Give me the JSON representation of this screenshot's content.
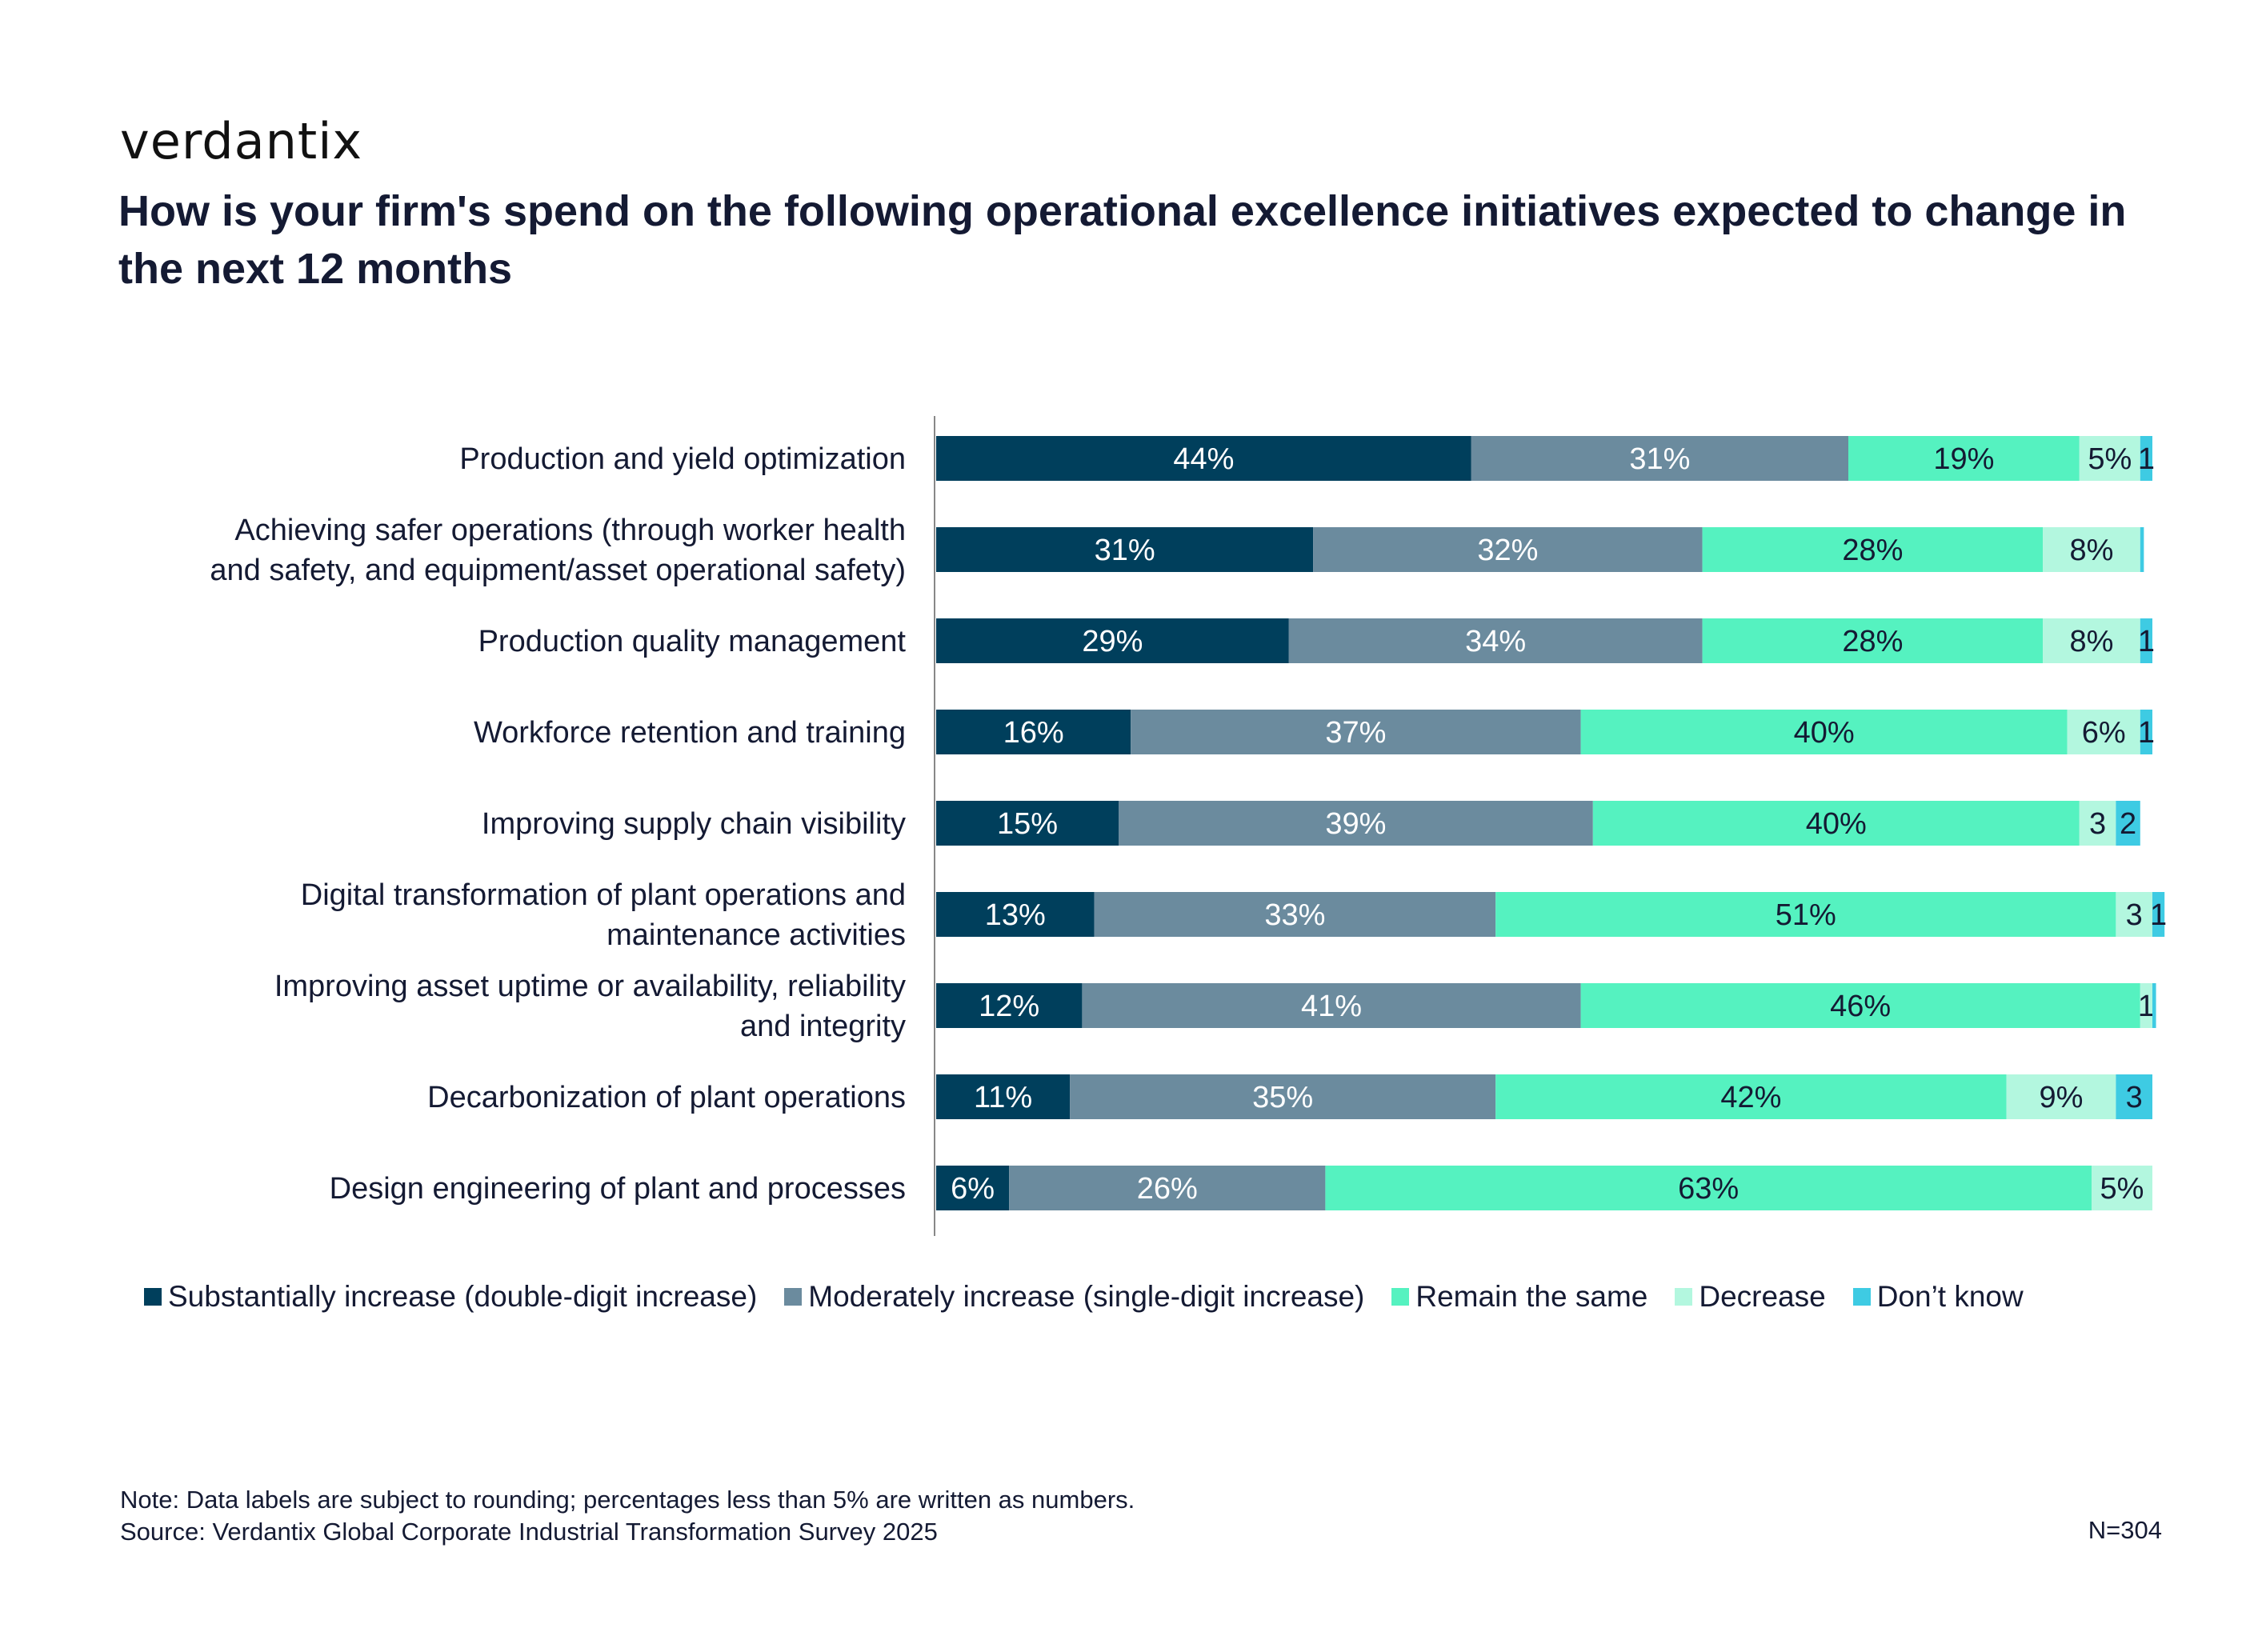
{
  "brand": "verdantix",
  "title": "How is your firm's spend on the following operational excellence initiatives expected to change in the next 12 months",
  "chart_data": {
    "type": "bar",
    "orientation": "horizontal",
    "stacked": true,
    "categories": [
      [
        "Production and yield optimization"
      ],
      [
        "Achieving safer operations (through worker health",
        "and safety, and equipment/asset operational safety)"
      ],
      [
        "Production quality management"
      ],
      [
        "Workforce retention and training"
      ],
      [
        "Improving supply chain visibility"
      ],
      [
        "Digital transformation of plant operations and",
        "maintenance activities"
      ],
      [
        "Improving asset uptime or availability, reliability",
        "and integrity"
      ],
      [
        "Decarbonization of plant operations"
      ],
      [
        "Design engineering of plant and processes"
      ]
    ],
    "series": [
      {
        "name": "Substantially increase (double-digit increase)",
        "color": "#003f5c",
        "values": [
          44,
          31,
          29,
          16,
          15,
          13,
          12,
          11,
          6
        ],
        "labels": [
          "44%",
          "31%",
          "29%",
          "16%",
          "15%",
          "13%",
          "12%",
          "11%",
          "6%"
        ]
      },
      {
        "name": "Moderately increase (single-digit increase)",
        "color": "#6b8b9e",
        "values": [
          31,
          32,
          34,
          37,
          39,
          33,
          41,
          35,
          26
        ],
        "labels": [
          "31%",
          "32%",
          "34%",
          "37%",
          "39%",
          "33%",
          "41%",
          "35%",
          "26%"
        ]
      },
      {
        "name": "Remain the same",
        "color": "#55f2c0",
        "values": [
          19,
          28,
          28,
          40,
          40,
          51,
          46,
          42,
          63
        ],
        "labels": [
          "19%",
          "28%",
          "28%",
          "40%",
          "40%",
          "51%",
          "46%",
          "42%",
          "63%"
        ]
      },
      {
        "name": "Decrease",
        "color": "#b3f7df",
        "values": [
          5,
          8,
          8,
          6,
          3,
          3,
          1,
          9,
          5
        ],
        "labels": [
          "5%",
          "8%",
          "8%",
          "6%",
          "3",
          "3",
          "1",
          "9%",
          "5%"
        ]
      },
      {
        "name": "Don’t know",
        "color": "#3ecbe3",
        "values": [
          1,
          0.3,
          1,
          1,
          2,
          1,
          0.3,
          3,
          0
        ],
        "labels": [
          "1",
          "",
          "1",
          "1",
          "2",
          "1",
          "",
          "3",
          ""
        ]
      }
    ],
    "xlim": [
      0,
      100
    ]
  },
  "footer": {
    "note": "Note: Data labels are subject to rounding; percentages less than 5% are written as numbers.",
    "source": "Source: Verdantix Global Corporate Industrial Transformation Survey 2025",
    "n": "N=304"
  }
}
